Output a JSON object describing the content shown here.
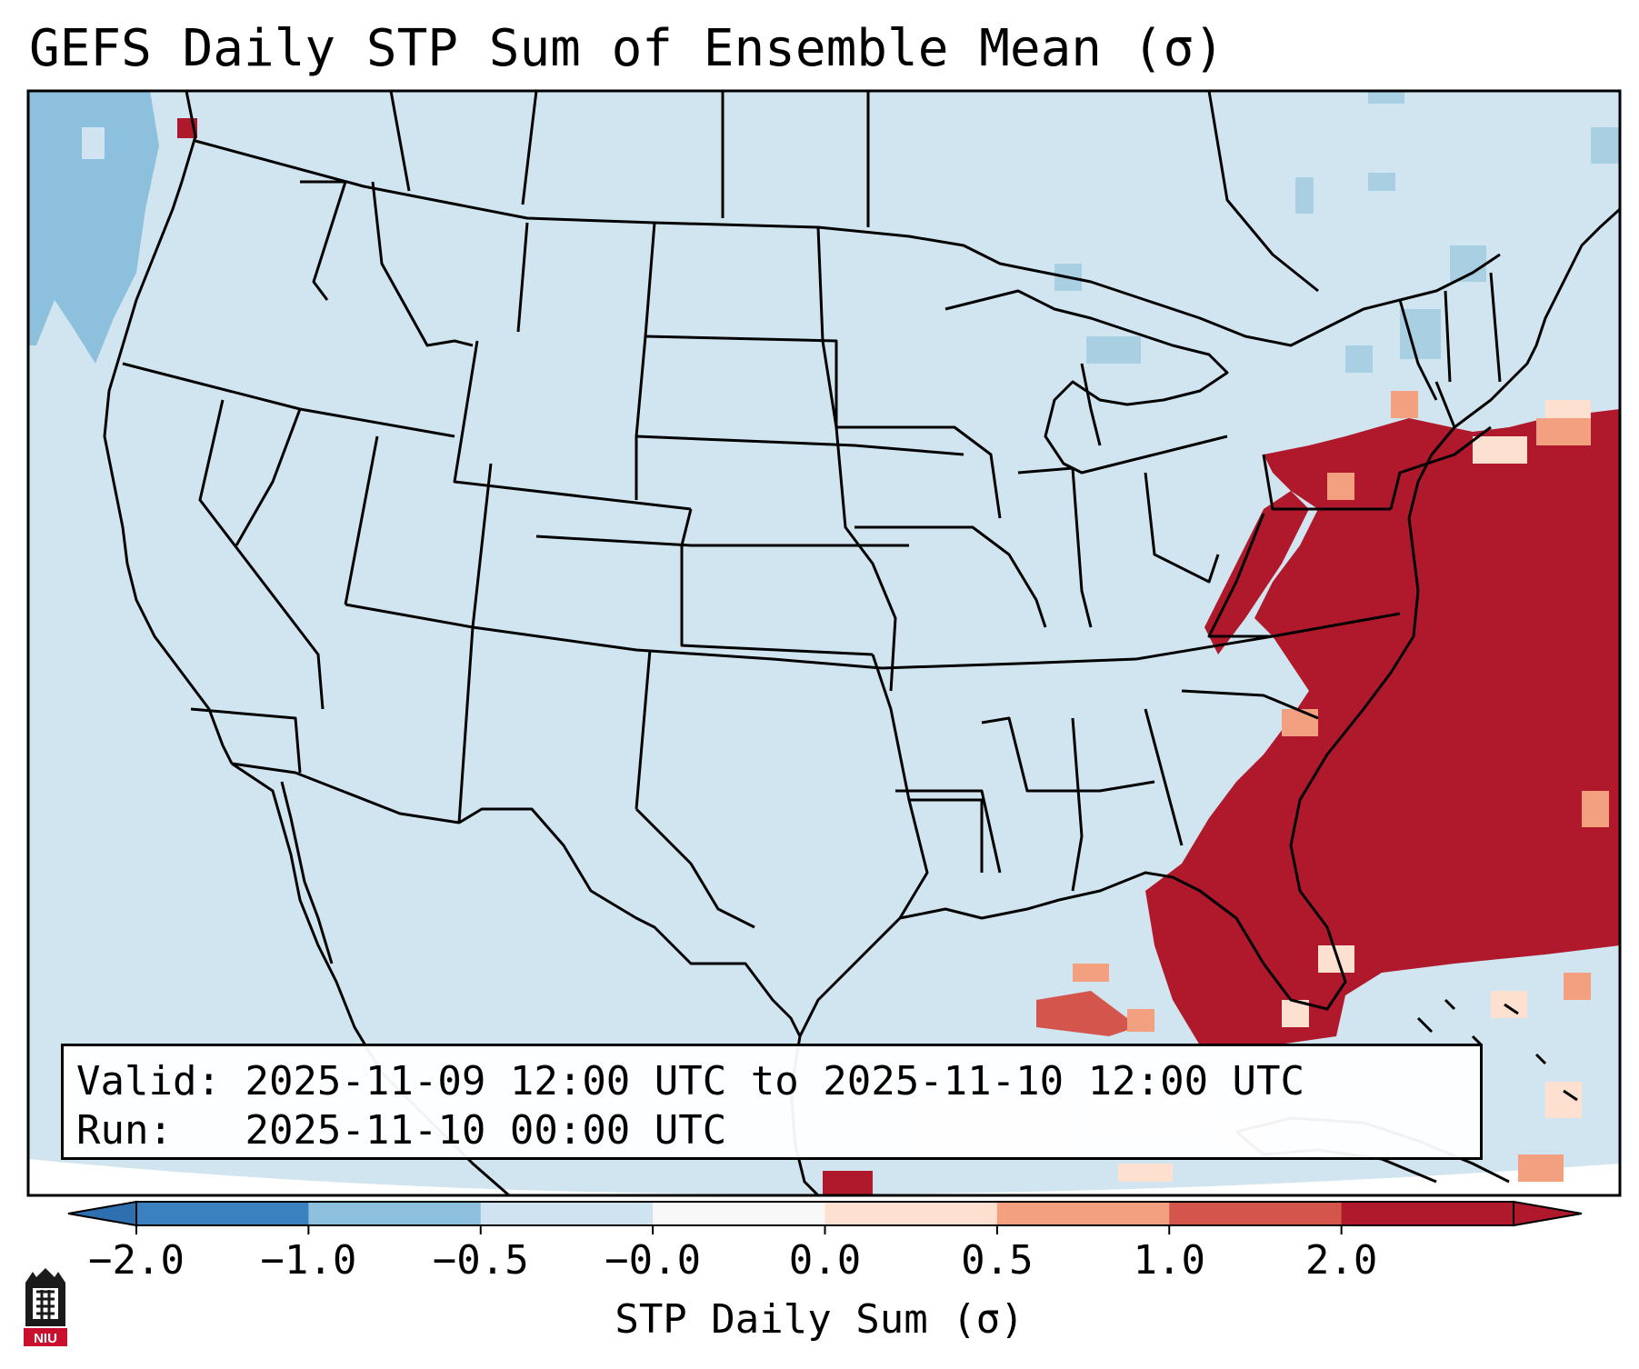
{
  "title": "GEFS Daily STP Sum of Ensemble Mean (σ)",
  "info": {
    "valid_label": "Valid:",
    "valid_value": "2025-11-09 12:00 UTC to 2025-11-10 12:00 UTC",
    "run_label": "Run:",
    "run_value": "2025-11-10 00:00 UTC"
  },
  "colorbar": {
    "label": "STP Daily Sum (σ)",
    "ticks": [
      "−2.0",
      "−1.0",
      "−0.5",
      "−0.0",
      "0.0",
      "0.5",
      "1.0",
      "2.0"
    ],
    "colors": [
      "#3a82bf",
      "#8cc0dc",
      "#cfe4f0",
      "#f8f8f8",
      "#fde0cf",
      "#f2a07f",
      "#d3554c",
      "#b0192b"
    ],
    "extend": "both"
  },
  "map": {
    "region": "CONUS",
    "ocean_color": "#d0e5f0",
    "land_color": "#d0e5f0",
    "high_anomaly_color": "#b0192b",
    "line_color": "#000000"
  },
  "logo": {
    "text": "NIU",
    "color": "#c8102e"
  }
}
